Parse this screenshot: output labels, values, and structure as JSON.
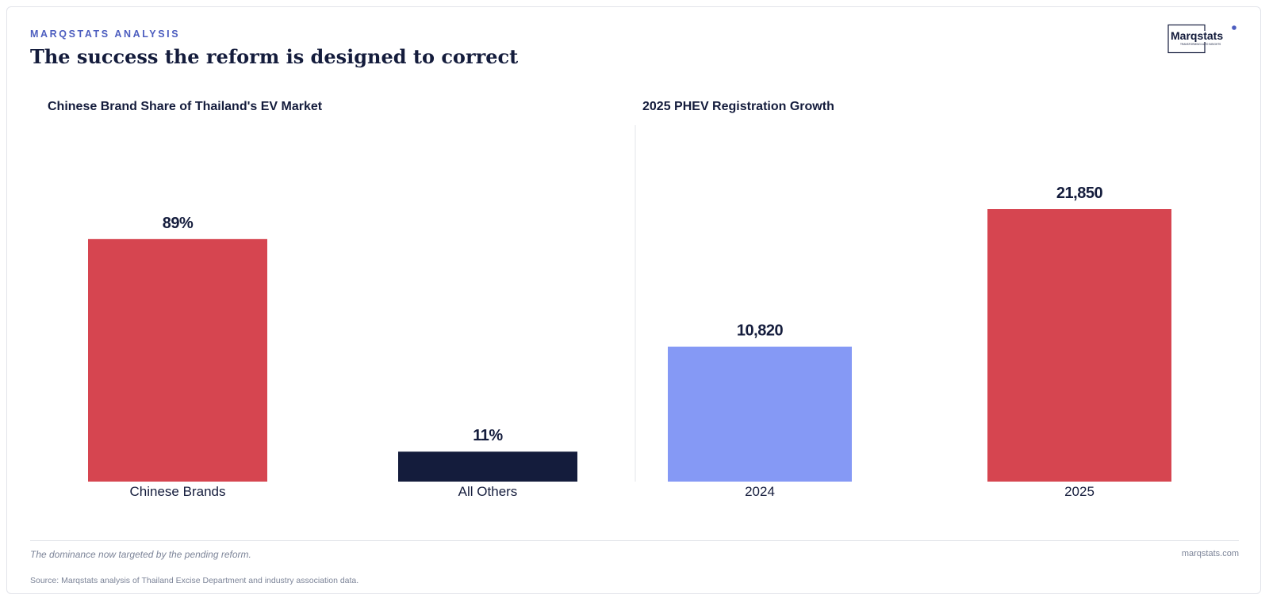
{
  "header": {
    "kicker": "MARQSTATS ANALYSIS",
    "title": "The success the reform is designed to correct"
  },
  "logo": {
    "name": "Marqstats",
    "tagline": "TRANSFORMING AUTO INSIGHTS",
    "accent": "#4c5dbf"
  },
  "chart_data": [
    {
      "type": "bar",
      "title": "Chinese Brand Share of Thailand's EV Market",
      "categories": [
        "Chinese Brands",
        "All Others"
      ],
      "values": [
        89,
        11
      ],
      "value_labels": [
        "89%",
        "11%"
      ],
      "colors": [
        "#d64550",
        "#141c3c"
      ],
      "ylim": [
        0,
        100
      ],
      "grid": false,
      "legend": "none"
    },
    {
      "type": "bar",
      "title": "2025 PHEV Registration Growth",
      "categories": [
        "2024",
        "2025"
      ],
      "values": [
        10820,
        21850
      ],
      "value_labels": [
        "10,820",
        "21,850"
      ],
      "colors": [
        "#8599f5",
        "#d64550"
      ],
      "ylim": [
        0,
        21850
      ],
      "grid": false,
      "legend": "none"
    }
  ],
  "footer": {
    "caption": "The dominance now targeted by the pending reform.",
    "site": "marqstats.com",
    "source": "Source: Marqstats analysis of Thailand Excise Department and industry association data."
  }
}
